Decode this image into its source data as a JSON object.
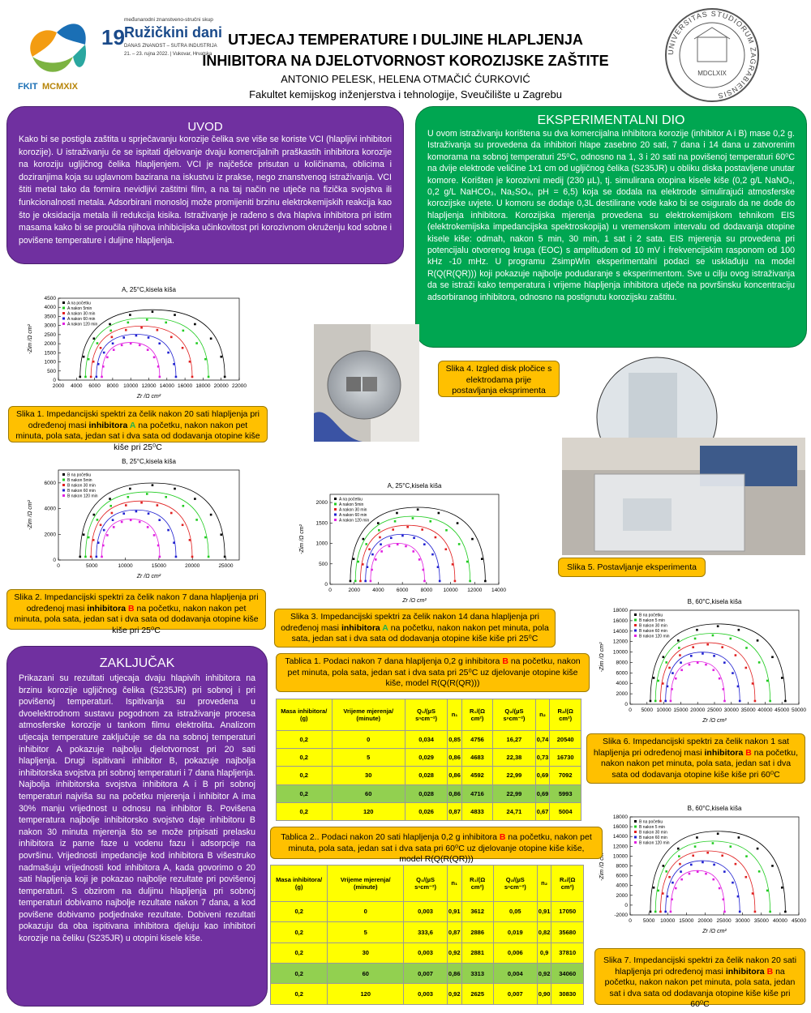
{
  "header": {
    "title_line1": "UTJECAJ TEMPERATURE I DULJINE HLAPLJENJA",
    "title_line2": "INHIBITORA NA DJELOTVORNOST KOROZIJSKE ZAŠTITE",
    "authors": "ANTONIO PELESK, HELENA OTMAČIĆ ĆURKOVIĆ",
    "affiliation": "Fakultet kemijskog inženjerstva i tehnologije, Sveučilište u Zagrebu"
  },
  "logo_left": {
    "fkit": "FKIT",
    "year": "MCMXIX",
    "number": "19",
    "conference_sub": "međunarodni znanstveno-stručni skup",
    "conference": "Ružičkini dani",
    "motto": "DANAS ZNANOST – SUTRA INDUSTRIJA",
    "dates": "21. – 23. rujna 2022. | Vukovar, Hrvatska"
  },
  "logo_right": {
    "ring": "UNIVERSITAS STUDIORUM ZAGRABIENSIS",
    "year": "MDCLXIX"
  },
  "uvod": {
    "heading": "UVOD",
    "text": "Kako bi se postigla zaštita u sprječavanju korozije čelika sve više se koriste VCI (hlapljivi inhibitori korozije). U istraživanju će se ispitati djelovanje dvaju komercijalnih praškastih inhibitora korozije na koroziju ugljičnog čelika hlapljenjem. VCI je najčešće prisutan u količinama, oblicima i doziranjima koja su uglavnom bazirana na iskustvu iz prakse, nego znanstvenog istraživanja. VCI štiti metal tako da formira nevidljivi zaštitni film, a na taj način ne utječe na fizička svojstva ili funkcionalnosti metala. Adsorbirani monosloj može promijeniti brzinu elektrokemijskih reakcija kao što je oksidacija metala ili redukcija kisika. Istraživanje je rađeno s dva hlapiva inhibitora pri istim masama kako bi se proučila njihova inhibicijska učinkovitost pri korozivnom okruženju kod sobne i povišene temperature i duljine hlapljenja."
  },
  "eksperimentalni": {
    "heading": "EKSPERIMENTALNI DIO",
    "text": "U ovom istraživanju korištena su dva komercijalna inhibitora korozije (inhibitor A i B) mase 0,2 g. Istraživanja su provedena da inhibitori hlape zasebno 20 sati, 7 dana i 14 dana u zatvorenim komorama na sobnoj temperaturi 25⁰C, odnosno na 1, 3 i 20 sati na povišenoj temperaturi 60⁰C na dvije elektrode veličine 1x1 cm od ugljičnog čelika (S235JR) u obliku diska postavljene unutar komore. Korišten je korozivni medij (230 µL), tj. simulirana otopina kisele kiše (0,2 g/L NaNO₃, 0,2 g/L NaHCO₃, Na₂SO₄, pH = 6,5) koja se dodala na elektrode simulirajući atmosferske korozijske uvjete. U komoru se dodaje 0,3L destilirane vode kako bi se osiguralo da ne dođe do hlapljenja inhibitora. Korozijska mjerenja provedena su elektrokemijskom tehnikom EIS (elektrokemijska impedancijska spektroskopija) u vremenskom intervalu od dodavanja otopine kisele kiše: odmah, nakon 5 min, 30 min, 1 sat i 2 sata. EIS mjerenja su provedena pri potencijalu otvorenog kruga (EOC) s amplitudom od 10 mV i frekvencijskim rasponom od 100 kHz -10 mHz. U programu ZsimpWin eksperimentalni podaci se usklađuju na model R(Q(R(QR))) koji pokazuje najbolje podudaranje s eksperimentom. Sve u cilju ovog istraživanja da se istraži kako temperatura i vrijeme hlapljenja inhibitora utječe na površinsku koncentraciju adsorbiranog inhibitora, odnosno na postignutu korozijsku zaštitu."
  },
  "zakljucak": {
    "heading": "ZAKLJUČAK",
    "text": "Prikazani su rezultati utjecaja dvaju hlapivih inhibitora na brzinu korozije ugljičnog čelika (S235JR) pri sobnoj i pri povišenoj temperaturi. Ispitivanja su provedena u dvoelektrodnom sustavu pogodnom za istraživanje procesa atmosferske korozije u tankom filmu elektrolita. Analizom utjecaja temperature zaključuje se da na sobnoj temperaturi inhibitor A pokazuje najbolju djelotvornost pri 20 sati hlapljenja. Drugi ispitivani inhibitor B, pokazuje najbolja inhibitorska svojstva pri sobnoj temperaturi i 7 dana hlapljenja. Najbolja inhibitorska svojstva inhibitora A i B pri sobnoj temperaturi najviša su na početku mjerenja i inhibitor A ima 30% manju vrijednost u odnosu na inhibitor B. Povišena temperatura najbolje inhibitorsko svojstvo daje inhibitoru B nakon 30 minuta mjerenja što se može pripisati prelasku inhibitora iz parne faze u vodenu fazu i adsorpcije na površinu. Vrijednosti impedancije kod inhibitora B višestruko nadmašuju vrijednosti kod inhibitora A, kada govorimo o 20 sati hlapljenja koji je pokazao najbolje rezultate pri povišenoj temperaturi. S obzirom na duljinu hlapljenja pri sobnoj temperaturi dobivamo najbolje rezultate nakon 7 dana, a kod povišene dobivamo podjednake rezultate. Dobiveni rezultati pokazuju da oba ispitivana inhibitora djeluju kao inhibitori korozije na čeliku (S235JR) u otopini kisele kiše."
  },
  "captions": {
    "slika1": [
      {
        "text": "Slika 1. Impedancijski spektri za čelik nakon 20 sati hlapljenja pri određenoj masi "
      },
      {
        "text": "inhibitora ",
        "bold": true
      },
      {
        "text": "A",
        "bold": true,
        "color": "#22b14c"
      },
      {
        "text": " na početku, nakon nakon pet minuta, pola sata, jedan sat i dva sata od dodavanja otopine kiše kiše pri 25⁰C"
      }
    ],
    "slika2": [
      {
        "text": "Slika 2. Impedancijski spektri za čelik nakon 7 dana hlapljenja pri određenoj masi "
      },
      {
        "text": "inhibitora ",
        "bold": true
      },
      {
        "text": "B",
        "bold": true,
        "color": "#ff0000"
      },
      {
        "text": " na početku, nakon nakon pet minuta, pola sata, jedan sat i dva sata od dodavanja otopine kiše kiše pri 25⁰C"
      }
    ],
    "slika3": [
      {
        "text": "Slika 3. Impedancijski spektri za čelik nakon 14 dana hlapljenja pri određenoj masi "
      },
      {
        "text": "inhibitora ",
        "bold": true
      },
      {
        "text": "A",
        "bold": true,
        "color": "#22b14c"
      },
      {
        "text": " na početku, nakon nakon pet minuta, pola sata, jedan sat i dva sata od dodavanja otopine kiše kiše pri 25⁰C"
      }
    ],
    "slika4": [
      {
        "text": "Slika 4. Izgled disk pločice s elektrodama prije  postavljanja eksprimenta"
      }
    ],
    "slika5": [
      {
        "text": "Slika 5. Postavljanje eksperimenta"
      }
    ],
    "slika6": [
      {
        "text": "Slika 6. Impedancijski spektri za čelik nakon 1 sat hlapljenja pri određenoj masi "
      },
      {
        "text": "inhibitora ",
        "bold": true
      },
      {
        "text": "B",
        "bold": true,
        "color": "#ff0000"
      },
      {
        "text": " na početku, nakon nakon pet minuta, pola sata, jedan sat i dva sata od dodavanja otopine kiše kiše pri 60⁰C"
      }
    ],
    "slika7": [
      {
        "text": "Slika 7. Impedancijski spektri za čelik nakon 20 sati hlapljenja pri određenoj masi "
      },
      {
        "text": "inhibitora ",
        "bold": true
      },
      {
        "text": "B",
        "bold": true,
        "color": "#ff0000"
      },
      {
        "text": " na početku, nakon nakon pet minuta, pola sata, jedan sat i dva sata od dodavanja otopine kiše kiše pri 60⁰C"
      }
    ],
    "tablica1": [
      {
        "text": "Tablica 1. Podaci nakon 7 dana hlapljenja 0,2 g inhibitora "
      },
      {
        "text": "B",
        "bold": true,
        "color": "#ff0000"
      },
      {
        "text": " na početku, nakon pet minuta, pola sata, jedan sat i dva sata pri 25⁰C uz djelovanje otopine kiše kiše, model R(Q(R(QR)))"
      }
    ],
    "tablica2": [
      {
        "text": "Tablica 2.. Podaci nakon 20 sati hlapljenja 0,2 g inhibitora "
      },
      {
        "text": "B",
        "bold": true,
        "color": "#ff0000"
      },
      {
        "text": " na početku, nakon pet minuta, pola sata, jedan sat i dva sata pri 60⁰C uz djelovanje otopine kiše kiše, model R(Q(R(QR)))"
      }
    ]
  },
  "figures": {
    "fig1": {
      "title": "A, 25°C,kisela kiša",
      "xlabel": "Zr /Ω cm²",
      "ylabel": "-Zim /Ω cm²",
      "xlim": [
        2000,
        22000
      ],
      "ylim": [
        0,
        4500
      ],
      "xticks": [
        2000,
        4000,
        6000,
        8000,
        10000,
        12000,
        14000,
        16000,
        18000,
        20000,
        22000
      ],
      "yticks": [
        0,
        500,
        1000,
        1500,
        2000,
        2500,
        3000,
        3500,
        4000,
        4500
      ],
      "legend": [
        "A na početku",
        "A nakon 5min",
        "A nakon 30 min",
        "A nakon 60 min",
        "A nakon 120 min"
      ],
      "colors": [
        "#000000",
        "#22cc22",
        "#e02020",
        "#2020d0",
        "#e020e0"
      ]
    },
    "fig2": {
      "title": "B, 25°C,kisela kiša",
      "xlabel": "Zr /Ω cm²",
      "ylabel": "-Zim /Ω cm²",
      "xlim": [
        0,
        27000
      ],
      "ylim": [
        0,
        7000
      ],
      "xticks": [
        0,
        5000,
        10000,
        15000,
        20000,
        25000
      ],
      "yticks": [
        0,
        2000,
        4000,
        6000
      ],
      "legend": [
        "B na početku",
        "B nakon 5min",
        "B nakon 30 min",
        "B nakon 60 min",
        "B nakon 120 min"
      ],
      "colors": [
        "#000000",
        "#22cc22",
        "#e02020",
        "#2020d0",
        "#e020e0"
      ]
    },
    "fig3": {
      "title": "A, 25°C,kisela kiša",
      "xlabel": "Zr /Ω cm²",
      "ylabel": "-Zim /Ω cm²",
      "xlim": [
        0,
        14000
      ],
      "ylim": [
        0,
        2200
      ],
      "xticks": [
        0,
        2000,
        4000,
        6000,
        8000,
        10000,
        12000,
        14000
      ],
      "yticks": [
        0,
        500,
        1000,
        1500,
        2000
      ],
      "legend": [
        "A na početku",
        "A nakon 5min",
        "A nakon 30 min",
        "A nakon 60 min",
        "A nakon 120 min"
      ],
      "colors": [
        "#000000",
        "#22cc22",
        "#e02020",
        "#2020d0",
        "#e020e0"
      ]
    },
    "fig6": {
      "title": "B, 60°C,kisela kiša",
      "xlabel": "Zr /Ω cm²",
      "ylabel": "-Zim /Ω cm²",
      "xlim": [
        0,
        50000
      ],
      "ylim": [
        0,
        18000
      ],
      "xticks": [
        0,
        5000,
        10000,
        15000,
        20000,
        25000,
        30000,
        35000,
        40000,
        45000,
        50000
      ],
      "yticks": [
        0,
        2000,
        4000,
        6000,
        8000,
        10000,
        12000,
        14000,
        16000,
        18000
      ],
      "legend": [
        "B na početku",
        "B nakon 5 min",
        "B nakon 30 min",
        "B nakon 60 min",
        "B nakon 120 min"
      ],
      "colors": [
        "#000000",
        "#22cc22",
        "#e02020",
        "#2020d0",
        "#e020e0"
      ]
    },
    "fig7": {
      "title": "B, 60°C,kisela kiša",
      "xlabel": "Zr /Ω cm²",
      "ylabel": "-Zim /Ω cm²",
      "xlim": [
        0,
        45000
      ],
      "ylim": [
        -2000,
        18000
      ],
      "xticks": [
        0,
        5000,
        10000,
        15000,
        20000,
        25000,
        30000,
        35000,
        40000,
        45000
      ],
      "yticks": [
        -2000,
        0,
        2000,
        4000,
        6000,
        8000,
        10000,
        12000,
        14000,
        16000,
        18000
      ],
      "legend": [
        "B na početku",
        "B nakon 5 min",
        "B nakon 30 min",
        "B nakon 60 min",
        "B nakon 120 min"
      ],
      "colors": [
        "#000000",
        "#22cc22",
        "#e02020",
        "#2020d0",
        "#e020e0"
      ]
    }
  },
  "tables": {
    "header": [
      "Masa inhibitora/ (g)",
      "Vrijeme mjerenja/ (minute)",
      "Q₁/(µS sⁿcm⁻²)",
      "n₁",
      "R₁/(Ω cm²)",
      "Q₂/(µS sⁿcm⁻²)",
      "n₂",
      "R₂/(Ω cm²)"
    ],
    "highlight_row": 3,
    "table1": [
      [
        "0,2",
        "0",
        "0,034",
        "0,85",
        "4756",
        "16,27",
        "0,74",
        "20540"
      ],
      [
        "0,2",
        "5",
        "0,029",
        "0,86",
        "4683",
        "22,38",
        "0,73",
        "16730"
      ],
      [
        "0,2",
        "30",
        "0,028",
        "0,86",
        "4592",
        "22,99",
        "0,69",
        "7092"
      ],
      [
        "0,2",
        "60",
        "0,028",
        "0,86",
        "4716",
        "22,99",
        "0,69",
        "5993"
      ],
      [
        "0,2",
        "120",
        "0,026",
        "0,87",
        "4833",
        "24,71",
        "0,67",
        "5004"
      ]
    ],
    "table2": [
      [
        "0,2",
        "0",
        "0,003",
        "0,91",
        "3612",
        "0,05",
        "0,91",
        "17050"
      ],
      [
        "0,2",
        "5",
        "333,6",
        "0,87",
        "2886",
        "0,019",
        "0,82",
        "35680"
      ],
      [
        "0,2",
        "30",
        "0,003",
        "0,92",
        "2881",
        "0,006",
        "0,9",
        "37810"
      ],
      [
        "0,2",
        "60",
        "0,007",
        "0,86",
        "3313",
        "0,004",
        "0,92",
        "34060"
      ],
      [
        "0,2",
        "120",
        "0,003",
        "0,92",
        "2625",
        "0,007",
        "0,90",
        "30830"
      ]
    ]
  }
}
